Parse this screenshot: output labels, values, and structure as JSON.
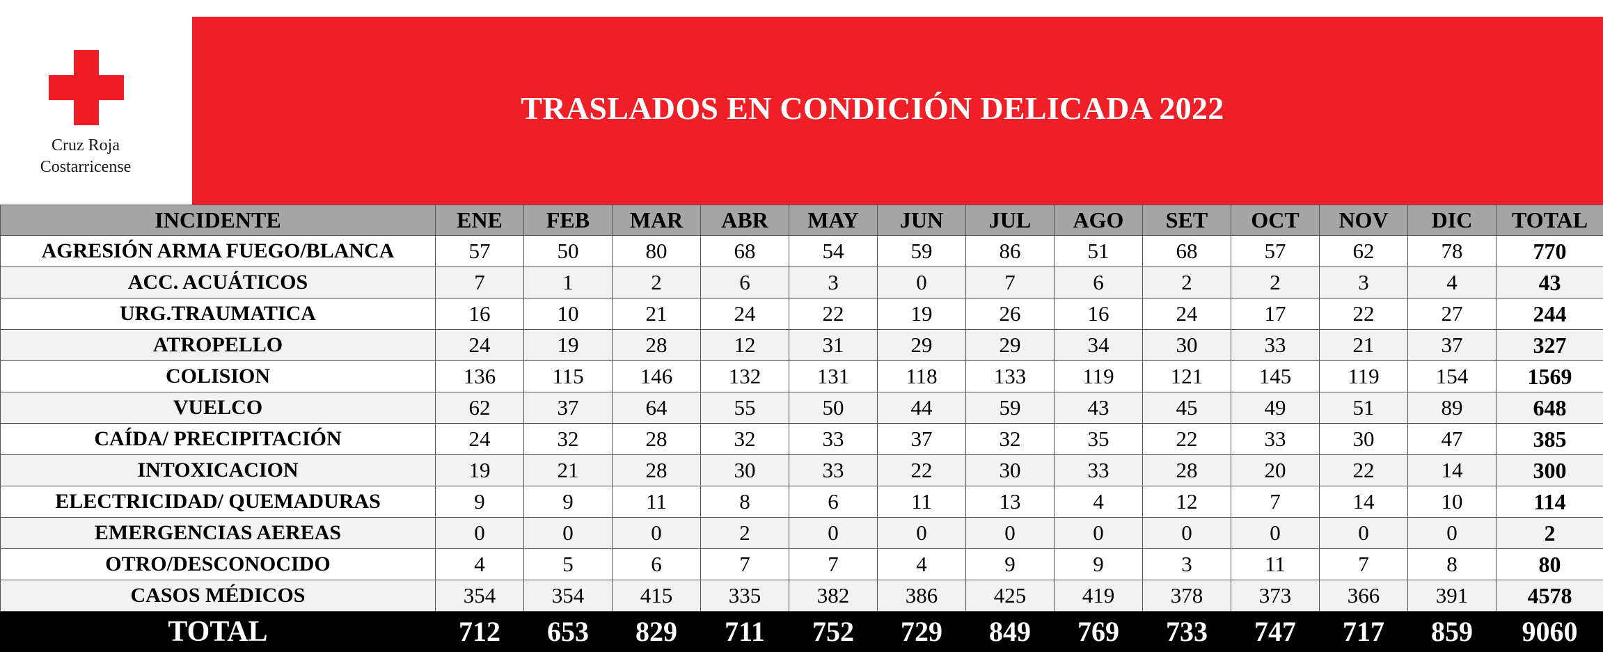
{
  "logo": {
    "org_line1": "Cruz Roja",
    "org_line2": "Costarricense",
    "cross_color": "#ee1c25"
  },
  "title": "TRASLADOS EN CONDICIÓN DELICADA 2022",
  "banner_color": "#ee1f27",
  "table": {
    "headers": [
      "INCIDENTE",
      "ENE",
      "FEB",
      "MAR",
      "ABR",
      "MAY",
      "JUN",
      "JUL",
      "AGO",
      "SET",
      "OCT",
      "NOV",
      "DIC",
      "TOTAL"
    ],
    "rows": [
      {
        "label": "AGRESIÓN ARMA FUEGO/BLANCA",
        "values": [
          "57",
          "50",
          "80",
          "68",
          "54",
          "59",
          "86",
          "51",
          "68",
          "57",
          "62",
          "78"
        ],
        "total": "770"
      },
      {
        "label": "ACC. ACUÁTICOS",
        "values": [
          "7",
          "1",
          "2",
          "6",
          "3",
          "0",
          "7",
          "6",
          "2",
          "2",
          "3",
          "4"
        ],
        "total": "43"
      },
      {
        "label": "URG.TRAUMATICA",
        "values": [
          "16",
          "10",
          "21",
          "24",
          "22",
          "19",
          "26",
          "16",
          "24",
          "17",
          "22",
          "27"
        ],
        "total": "244"
      },
      {
        "label": "ATROPELLO",
        "values": [
          "24",
          "19",
          "28",
          "12",
          "31",
          "29",
          "29",
          "34",
          "30",
          "33",
          "21",
          "37"
        ],
        "total": "327"
      },
      {
        "label": "COLISION",
        "values": [
          "136",
          "115",
          "146",
          "132",
          "131",
          "118",
          "133",
          "119",
          "121",
          "145",
          "119",
          "154"
        ],
        "total": "1569"
      },
      {
        "label": "VUELCO",
        "values": [
          "62",
          "37",
          "64",
          "55",
          "50",
          "44",
          "59",
          "43",
          "45",
          "49",
          "51",
          "89"
        ],
        "total": "648"
      },
      {
        "label": "CAÍDA/ PRECIPITACIÓN",
        "values": [
          "24",
          "32",
          "28",
          "32",
          "33",
          "37",
          "32",
          "35",
          "22",
          "33",
          "30",
          "47"
        ],
        "total": "385"
      },
      {
        "label": "INTOXICACION",
        "values": [
          "19",
          "21",
          "28",
          "30",
          "33",
          "22",
          "30",
          "33",
          "28",
          "20",
          "22",
          "14"
        ],
        "total": "300"
      },
      {
        "label": "ELECTRICIDAD/ QUEMADURAS",
        "values": [
          "9",
          "9",
          "11",
          "8",
          "6",
          "11",
          "13",
          "4",
          "12",
          "7",
          "14",
          "10"
        ],
        "total": "114"
      },
      {
        "label": "EMERGENCIAS AEREAS",
        "values": [
          "0",
          "0",
          "0",
          "2",
          "0",
          "0",
          "0",
          "0",
          "0",
          "0",
          "0",
          "0"
        ],
        "total": "2"
      },
      {
        "label": "OTRO/DESCONOCIDO",
        "values": [
          "4",
          "5",
          "6",
          "7",
          "7",
          "4",
          "9",
          "9",
          "3",
          "11",
          "7",
          "8"
        ],
        "total": "80"
      },
      {
        "label": "CASOS MÉDICOS",
        "values": [
          "354",
          "354",
          "415",
          "335",
          "382",
          "386",
          "425",
          "419",
          "378",
          "373",
          "366",
          "391"
        ],
        "total": "4578"
      }
    ],
    "footer": {
      "label": "TOTAL",
      "values": [
        "712",
        "653",
        "829",
        "711",
        "752",
        "729",
        "849",
        "769",
        "733",
        "747",
        "717",
        "859"
      ],
      "total": "9060"
    }
  }
}
